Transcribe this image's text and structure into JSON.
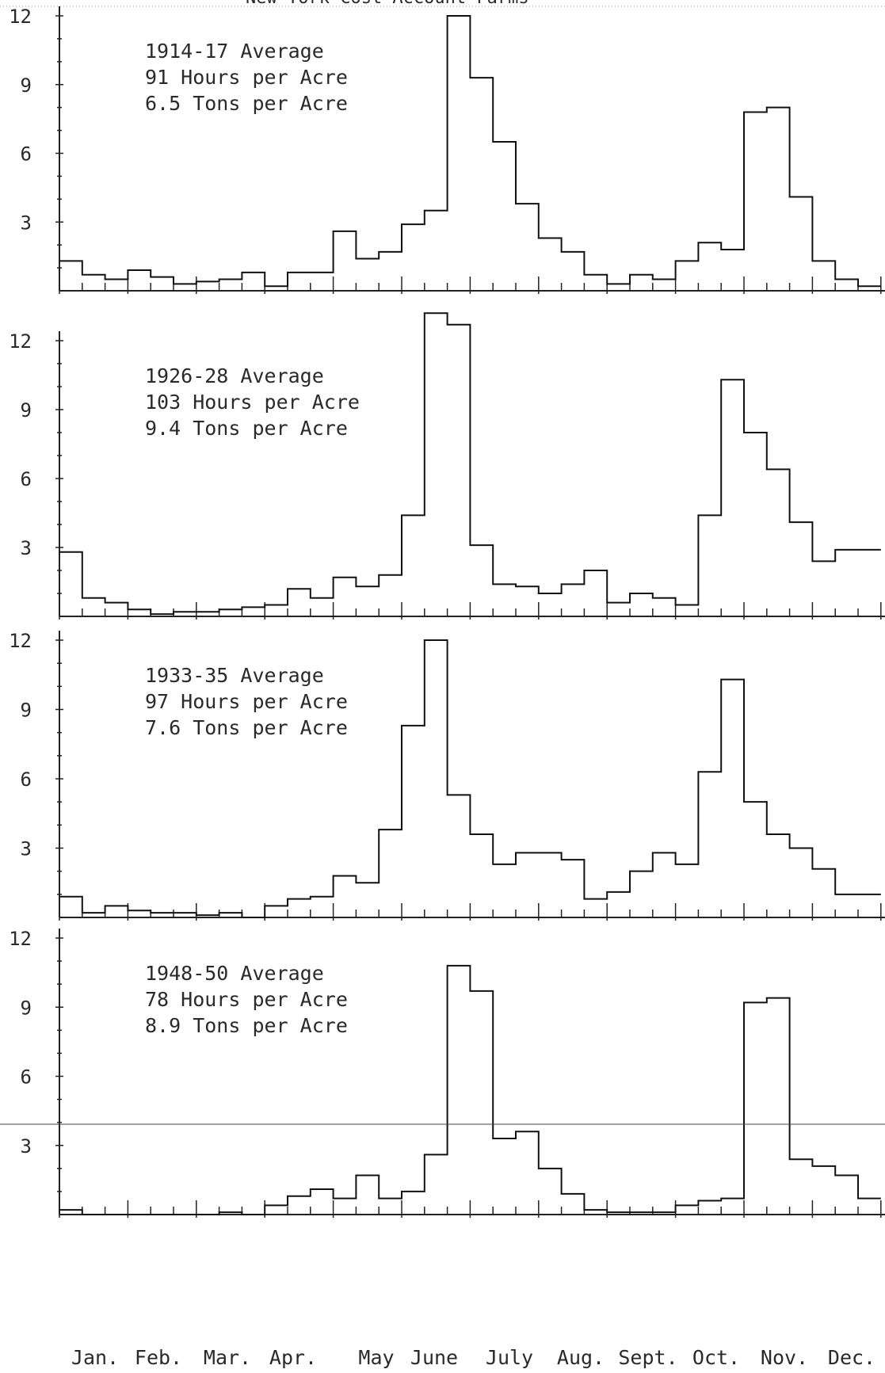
{
  "header_fragment": "New York Cost Account Farms",
  "y_tick_labels": [
    "12",
    "9",
    "6",
    "3"
  ],
  "month_labels": [
    "Jan.",
    "Feb.",
    "Mar.",
    "Apr.",
    "May",
    "June",
    "July",
    "Aug.",
    "Sept.",
    "Oct.",
    "Nov.",
    "Dec."
  ],
  "chart_data": [
    {
      "type": "line",
      "step": true,
      "x_unit": "half-month periods (24 per year)",
      "ylim": [
        0,
        12
      ],
      "annotation": [
        "1914-17 Average",
        "91 Hours per Acre",
        "6.5 Tons per Acre"
      ],
      "values": [
        1.3,
        0.7,
        0.5,
        0.9,
        0.6,
        0.3,
        0.4,
        0.5,
        0.8,
        0.2,
        0.8,
        0.8,
        2.6,
        1.4,
        1.7,
        2.9,
        3.5,
        12.0,
        9.3,
        6.5,
        3.8,
        2.3,
        1.7,
        0.7,
        0.3,
        0.7,
        0.5,
        1.3,
        2.1,
        1.8,
        7.8,
        8.0,
        4.1,
        1.3,
        0.5,
        0.2
      ]
    },
    {
      "type": "line",
      "step": true,
      "x_unit": "half-month periods (24 per year)",
      "ylim": [
        0,
        12
      ],
      "annotation": [
        "1926-28 Average",
        "103 Hours per Acre",
        "9.4 Tons per Acre"
      ],
      "values": [
        2.8,
        0.8,
        0.6,
        0.3,
        0.1,
        0.2,
        0.2,
        0.3,
        0.4,
        0.5,
        1.2,
        0.8,
        1.7,
        1.3,
        1.8,
        4.4,
        13.2,
        12.7,
        3.1,
        1.4,
        1.3,
        1.0,
        1.4,
        2.0,
        0.6,
        1.0,
        0.8,
        0.5,
        4.4,
        10.3,
        8.0,
        6.4,
        4.1,
        2.4,
        2.9,
        2.9
      ]
    },
    {
      "type": "line",
      "step": true,
      "x_unit": "half-month periods (24 per year)",
      "ylim": [
        0,
        12
      ],
      "annotation": [
        "1933-35 Average",
        "97 Hours per Acre",
        "7.6 Tons per Acre"
      ],
      "values": [
        0.9,
        0.2,
        0.5,
        0.3,
        0.2,
        0.2,
        0.1,
        0.2,
        0.0,
        0.5,
        0.8,
        0.9,
        1.8,
        1.5,
        3.8,
        8.3,
        12.0,
        5.3,
        3.6,
        2.3,
        2.8,
        2.8,
        2.5,
        0.8,
        1.1,
        2.0,
        2.8,
        2.3,
        6.3,
        10.3,
        5.0,
        3.6,
        3.0,
        2.1,
        1.0,
        1.0
      ]
    },
    {
      "type": "line",
      "step": true,
      "x_unit": "half-month periods (24 per year)",
      "ylim": [
        0,
        12
      ],
      "annotation": [
        "1948-50 Average",
        "78 Hours per Acre",
        "8.9 Tons per Acre"
      ],
      "values": [
        0.2,
        0.0,
        0.0,
        0.0,
        0.0,
        0.0,
        0.0,
        0.1,
        0.0,
        0.4,
        0.8,
        1.1,
        0.7,
        1.7,
        0.7,
        1.0,
        2.6,
        10.8,
        9.7,
        3.3,
        3.6,
        2.0,
        0.9,
        0.2,
        0.1,
        0.1,
        0.1,
        0.4,
        0.6,
        0.7,
        9.2,
        9.4,
        2.4,
        2.1,
        1.7,
        0.7
      ]
    }
  ]
}
